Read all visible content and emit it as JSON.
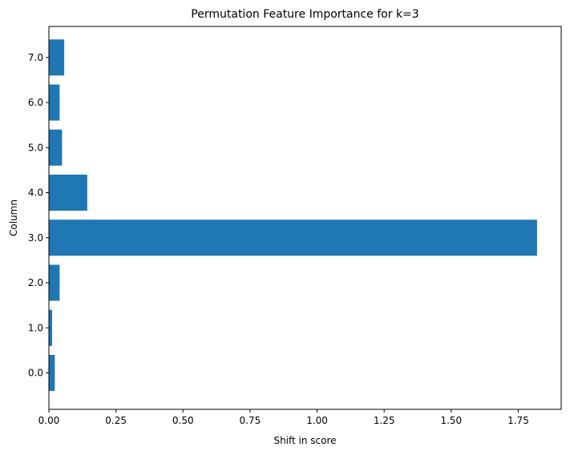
{
  "chart_data": {
    "type": "bar",
    "orientation": "horizontal",
    "title": "Permutation Feature Importance for k=3",
    "xlabel": "Shift in score",
    "ylabel": "Column",
    "categories": [
      "0.0",
      "1.0",
      "2.0",
      "3.0",
      "4.0",
      "5.0",
      "6.0",
      "7.0"
    ],
    "values": [
      0.022,
      0.012,
      0.04,
      1.82,
      0.143,
      0.049,
      0.04,
      0.057
    ],
    "xlim": [
      0,
      1.91
    ],
    "xticks": [
      "0.00",
      "0.25",
      "0.50",
      "0.75",
      "1.00",
      "1.25",
      "1.50",
      "1.75"
    ],
    "xtick_values": [
      0,
      0.25,
      0.5,
      0.75,
      1.0,
      1.25,
      1.5,
      1.75
    ],
    "grid": false,
    "legend": "none",
    "bar_color": "#1f77b4"
  }
}
